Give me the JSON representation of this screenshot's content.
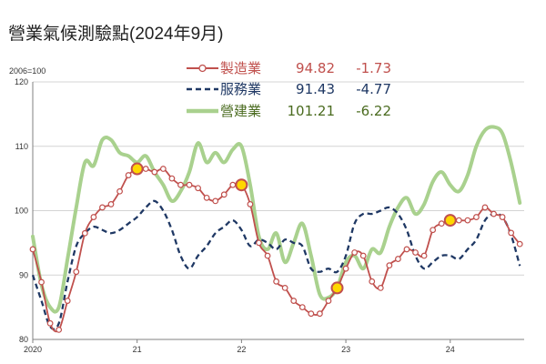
{
  "title": "營業氣候測驗點(2024年9月)",
  "chart_data": {
    "type": "line",
    "title": "營業氣候測驗點(2024年9月)",
    "ylabel": "2006=100",
    "ylim": [
      80,
      120
    ],
    "yticks": [
      80,
      90,
      100,
      110,
      120
    ],
    "x_tick_labels": [
      "2020",
      "21",
      "22",
      "23",
      "24"
    ],
    "x_range": [
      "2020-01",
      "2024-09"
    ],
    "grid": "horizontal",
    "legend_position": "top-center",
    "series": [
      {
        "name": "製造業",
        "latest": "94.82",
        "change": "-1.73",
        "color": "#c0504d",
        "style": "line-with-markers",
        "highlighted_points": [
          "2021-01",
          "2022-01",
          "2022-12",
          "2024-01"
        ],
        "x": [
          "2020-01",
          "2020-02",
          "2020-03",
          "2020-04",
          "2020-05",
          "2020-06",
          "2020-07",
          "2020-08",
          "2020-09",
          "2020-10",
          "2020-11",
          "2020-12",
          "2021-01",
          "2021-02",
          "2021-03",
          "2021-04",
          "2021-05",
          "2021-06",
          "2021-07",
          "2021-08",
          "2021-09",
          "2021-10",
          "2021-11",
          "2021-12",
          "2022-01",
          "2022-02",
          "2022-03",
          "2022-04",
          "2022-05",
          "2022-06",
          "2022-07",
          "2022-08",
          "2022-09",
          "2022-10",
          "2022-11",
          "2022-12",
          "2023-01",
          "2023-02",
          "2023-03",
          "2023-04",
          "2023-05",
          "2023-06",
          "2023-07",
          "2023-08",
          "2023-09",
          "2023-10",
          "2023-11",
          "2023-12",
          "2024-01",
          "2024-02",
          "2024-03",
          "2024-04",
          "2024-05",
          "2024-06",
          "2024-07",
          "2024-08",
          "2024-09"
        ],
        "values": [
          94.0,
          88.9,
          82.5,
          81.5,
          86.0,
          90.5,
          96.5,
          99.0,
          100.5,
          101.0,
          103.0,
          105.5,
          106.5,
          106.5,
          106.0,
          106.5,
          105.0,
          104.0,
          104.0,
          103.5,
          102.0,
          101.5,
          102.5,
          104.0,
          104.0,
          101.0,
          95.0,
          93.0,
          89.0,
          88.0,
          86.0,
          85.0,
          84.0,
          84.0,
          86.0,
          88.0,
          91.0,
          93.5,
          93.0,
          89.0,
          88.0,
          91.5,
          92.5,
          94.0,
          93.5,
          93.0,
          97.0,
          98.0,
          98.5,
          98.5,
          98.5,
          99.0,
          100.5,
          99.5,
          99.0,
          96.55,
          94.82
        ]
      },
      {
        "name": "服務業",
        "latest": "91.43",
        "change": "-4.77",
        "color": "#1f3864",
        "style": "dashed",
        "x": [
          "2020-01",
          "2020-02",
          "2020-03",
          "2020-04",
          "2020-05",
          "2020-06",
          "2020-07",
          "2020-08",
          "2020-09",
          "2020-10",
          "2020-11",
          "2020-12",
          "2021-01",
          "2021-02",
          "2021-03",
          "2021-04",
          "2021-05",
          "2021-06",
          "2021-07",
          "2021-08",
          "2021-09",
          "2021-10",
          "2021-11",
          "2021-12",
          "2022-01",
          "2022-02",
          "2022-03",
          "2022-04",
          "2022-05",
          "2022-06",
          "2022-07",
          "2022-08",
          "2022-09",
          "2022-10",
          "2022-11",
          "2022-12",
          "2023-01",
          "2023-02",
          "2023-03",
          "2023-04",
          "2023-05",
          "2023-06",
          "2023-07",
          "2023-08",
          "2023-09",
          "2023-10",
          "2023-11",
          "2023-12",
          "2024-01",
          "2024-02",
          "2024-03",
          "2024-04",
          "2024-05",
          "2024-06",
          "2024-07",
          "2024-08",
          "2024-09"
        ],
        "values": [
          90.0,
          86.0,
          82.0,
          82.5,
          89.0,
          94.5,
          96.5,
          97.5,
          97.0,
          96.5,
          97.0,
          98.0,
          99.0,
          100.5,
          101.5,
          100.0,
          97.0,
          93.0,
          91.0,
          93.0,
          94.5,
          96.5,
          97.5,
          98.5,
          97.0,
          94.5,
          95.5,
          95.0,
          94.0,
          95.5,
          95.0,
          94.5,
          91.0,
          90.5,
          91.0,
          90.5,
          93.0,
          98.0,
          99.5,
          99.5,
          100.0,
          100.5,
          99.5,
          97.0,
          93.0,
          91.0,
          92.0,
          93.0,
          93.0,
          92.5,
          94.0,
          95.5,
          98.5,
          99.5,
          99.0,
          96.2,
          91.43
        ]
      },
      {
        "name": "營建業",
        "latest": "101.21",
        "change": "-6.22",
        "color": "#a9d18e",
        "style": "thick-line",
        "x": [
          "2020-01",
          "2020-02",
          "2020-03",
          "2020-04",
          "2020-05",
          "2020-06",
          "2020-07",
          "2020-08",
          "2020-09",
          "2020-10",
          "2020-11",
          "2020-12",
          "2021-01",
          "2021-02",
          "2021-03",
          "2021-04",
          "2021-05",
          "2021-06",
          "2021-07",
          "2021-08",
          "2021-09",
          "2021-10",
          "2021-11",
          "2021-12",
          "2022-01",
          "2022-02",
          "2022-03",
          "2022-04",
          "2022-05",
          "2022-06",
          "2022-07",
          "2022-08",
          "2022-09",
          "2022-10",
          "2022-11",
          "2022-12",
          "2023-01",
          "2023-02",
          "2023-03",
          "2023-04",
          "2023-05",
          "2023-06",
          "2023-07",
          "2023-08",
          "2023-09",
          "2023-10",
          "2023-11",
          "2023-12",
          "2024-01",
          "2024-02",
          "2024-03",
          "2024-04",
          "2024-05",
          "2024-06",
          "2024-07",
          "2024-08",
          "2024-09"
        ],
        "values": [
          96.0,
          88.5,
          85.0,
          85.0,
          92.5,
          100.5,
          107.5,
          107.0,
          111.0,
          111.0,
          109.0,
          108.5,
          107.5,
          108.5,
          106.0,
          104.0,
          101.5,
          103.0,
          106.0,
          110.5,
          107.5,
          109.0,
          107.5,
          109.5,
          110.0,
          104.0,
          96.0,
          94.0,
          96.5,
          92.0,
          95.0,
          98.0,
          93.0,
          87.0,
          86.5,
          88.0,
          92.0,
          93.0,
          91.0,
          94.0,
          93.5,
          97.5,
          100.5,
          102.0,
          99.5,
          101.0,
          104.5,
          106.0,
          104.0,
          103.0,
          105.5,
          110.0,
          112.5,
          113.0,
          112.0,
          107.43,
          101.21
        ]
      }
    ]
  }
}
